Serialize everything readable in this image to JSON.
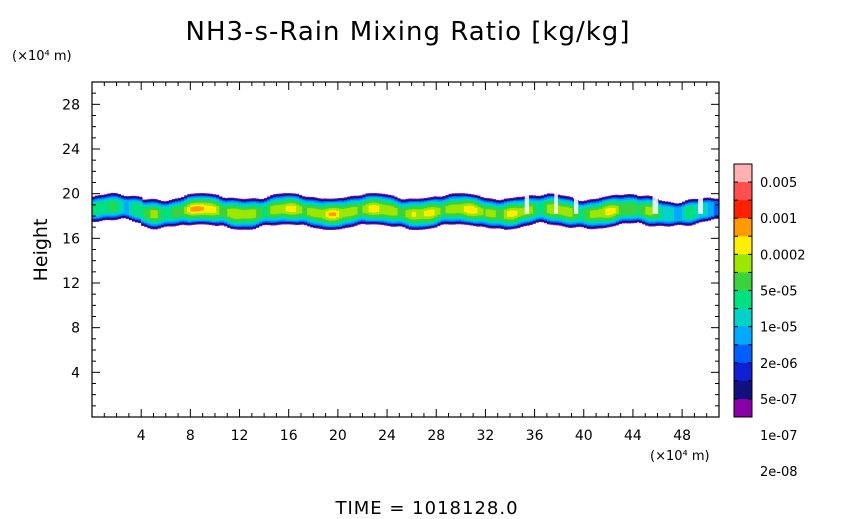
{
  "chart_data": {
    "type": "heatmap",
    "title": "NH3-s-Rain Mixing Ratio [kg/kg]",
    "ylabel": "Height",
    "y_unit": "(×10⁴ m)",
    "x_unit": "(×10⁴ m)",
    "xlim": [
      0,
      51
    ],
    "ylim": [
      0,
      30
    ],
    "x_ticks": [
      4,
      8,
      12,
      16,
      20,
      24,
      28,
      32,
      36,
      40,
      44,
      48
    ],
    "y_ticks": [
      4,
      8,
      12,
      16,
      20,
      24,
      28
    ],
    "colorbar": {
      "labels": [
        "0.005",
        "0.001",
        "0.0002",
        "5e-05",
        "1e-05",
        "2e-06",
        "5e-07",
        "1e-07",
        "2e-08"
      ],
      "colors": [
        "#ffb0b0",
        "#ff5050",
        "#ff2000",
        "#ff9a00",
        "#ffee00",
        "#9ce600",
        "#3cd23c",
        "#00e080",
        "#00d2c8",
        "#00aaff",
        "#0060ff",
        "#1020d0",
        "#101080",
        "#8a00a8"
      ]
    },
    "layer": {
      "y_bottom": 17,
      "y_top": 19.8,
      "core_x_range": [
        8,
        44
      ],
      "peak_x": 9,
      "peak_y": 18.5
    },
    "time_label": "TIME  =  1018128.0"
  }
}
